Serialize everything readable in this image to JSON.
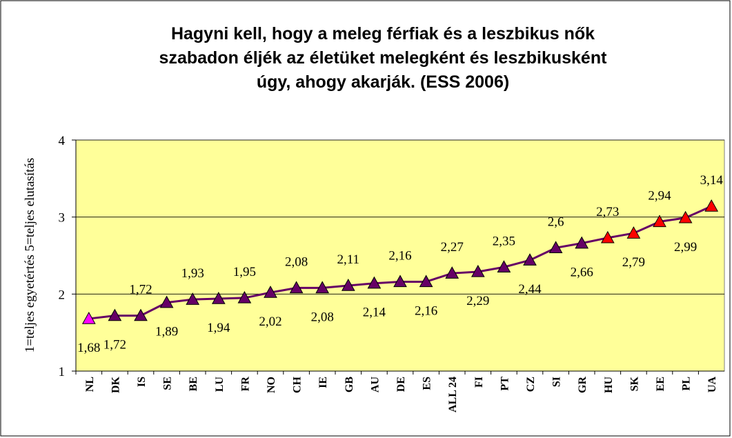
{
  "chart_data": {
    "type": "line",
    "title": [
      "Hagyni kell, hogy a meleg férfiak és a leszbikus nők",
      "szabadon éljék az életüket melegként és leszbikusként",
      "úgy, ahogy akarják. (ESS 2006)"
    ],
    "ylabel": "1=teljes egyetértés  5=teljes elutasítás",
    "categories": [
      "NL",
      "DK",
      "IS",
      "SE",
      "BE",
      "LU",
      "FR",
      "NO",
      "CH",
      "IE",
      "GB",
      "AU",
      "DE",
      "ES",
      "ALL 24",
      "FI",
      "PT",
      "CZ",
      "SI",
      "GR",
      "HU",
      "SK",
      "EE",
      "PL",
      "UA"
    ],
    "values": [
      1.68,
      1.72,
      1.72,
      1.89,
      1.93,
      1.94,
      1.95,
      2.02,
      2.08,
      2.08,
      2.11,
      2.14,
      2.16,
      2.16,
      2.27,
      2.29,
      2.35,
      2.44,
      2.6,
      2.66,
      2.73,
      2.79,
      2.94,
      2.99,
      3.14
    ],
    "value_labels": [
      "1,68",
      "1,72",
      "1,72",
      "1,89",
      "1,93",
      "1,94",
      "1,95",
      "2,02",
      "2,08",
      "2,08",
      "2,11",
      "2,14",
      "2,16",
      "2,16",
      "2,27",
      "2,29",
      "2,35",
      "2,44",
      "2,6",
      "2,66",
      "2,73",
      "2,79",
      "2,94",
      "2,99",
      "3,14"
    ],
    "color": "#660066",
    "marker_colors": [
      "#ff00ff",
      "#660066",
      "#660066",
      "#660066",
      "#660066",
      "#660066",
      "#660066",
      "#660066",
      "#660066",
      "#660066",
      "#660066",
      "#660066",
      "#660066",
      "#660066",
      "#660066",
      "#660066",
      "#660066",
      "#660066",
      "#660066",
      "#660066",
      "#ff0000",
      "#ff0000",
      "#ff0000",
      "#ff0000",
      "#ff0000"
    ],
    "ylim": [
      1,
      4
    ],
    "yticks": [
      1,
      2,
      3,
      4
    ],
    "grid": true
  }
}
